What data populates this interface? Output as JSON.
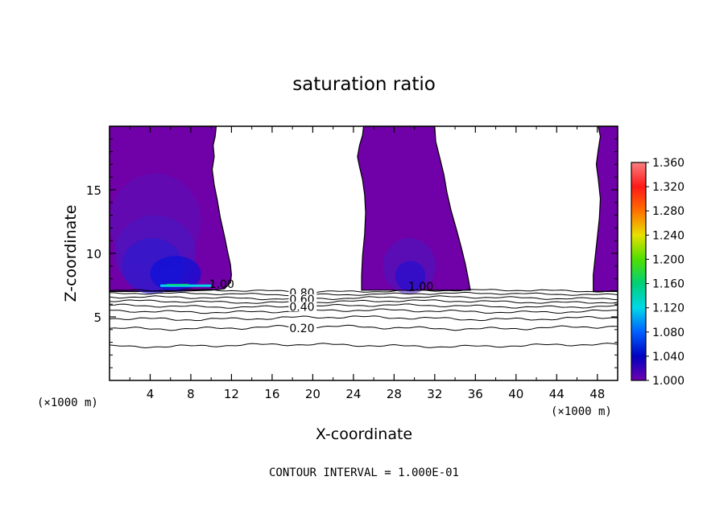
{
  "chart_data": {
    "type": "heatmap",
    "title": "saturation ratio",
    "xlabel": "X-coordinate",
    "ylabel": "Z-coordinate",
    "x_unit_label": "(×1000 m)",
    "z_unit_label": "(×1000 m)",
    "xlim": [
      0,
      50
    ],
    "ylim": [
      0,
      20
    ],
    "x_ticks": [
      4,
      8,
      12,
      16,
      20,
      24,
      28,
      32,
      36,
      40,
      44,
      48
    ],
    "y_ticks": [
      5,
      10,
      15
    ],
    "footer": "CONTOUR INTERVAL = 1.000E-01",
    "colorbar": {
      "min": 1.0,
      "max": 1.36,
      "labels": [
        "1.360",
        "1.320",
        "1.280",
        "1.240",
        "1.200",
        "1.160",
        "1.120",
        "1.080",
        "1.040",
        "1.000"
      ],
      "colors": [
        "#f88080",
        "#ff1818",
        "#ff7000",
        "#e8e000",
        "#50e000",
        "#00d078",
        "#00d8e8",
        "#0060ff",
        "#0000c0",
        "#7000b0"
      ]
    },
    "fill_color": "#7000a8",
    "contour_labels": [
      {
        "text": "1.00",
        "x": 9.8,
        "z": 7.6
      },
      {
        "text": "1.00",
        "x": 29.4,
        "z": 7.4
      },
      {
        "text": "0.80",
        "x": 17.7,
        "z": 6.9
      },
      {
        "text": "0.60",
        "x": 17.7,
        "z": 6.4
      },
      {
        "text": "0.40",
        "x": 17.7,
        "z": 5.8
      },
      {
        "text": "0.20",
        "x": 17.7,
        "z": 4.1
      }
    ]
  }
}
